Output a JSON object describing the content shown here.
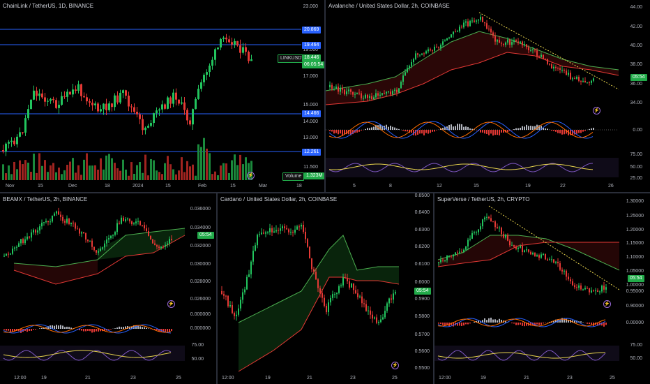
{
  "panes": {
    "link": {
      "title": "ChainLink / TetherUS, 1D, BINANCE",
      "y_labels": [
        "23.000",
        "19.000",
        "17.000",
        "15.000",
        "14.000",
        "13.000",
        "11.500"
      ],
      "levels": [
        "20.869",
        "19.464",
        "14.466",
        "12.261"
      ],
      "symbol_tag": "LINKUSDT",
      "price": "18.446",
      "countdown": "06:05:54",
      "volume_label": "Volume",
      "volume_value": "1.323M",
      "x_labels": [
        "Nov",
        "15",
        "Dec",
        "18",
        "2024",
        "15",
        "Feb",
        "15",
        "Mar",
        "18"
      ]
    },
    "avax": {
      "title": "Avalanche / United States Dollar, 2h, COINBASE",
      "y_labels": [
        "44.00",
        "42.00",
        "40.00",
        "38.00",
        "36.00",
        "34.00"
      ],
      "price_tag": "05:54",
      "macd_label": "0.00",
      "rsi_labels": [
        "75.00",
        "50.00",
        "25.00"
      ],
      "x_labels": [
        "5",
        "8",
        "12",
        "15",
        "19",
        "22",
        "26"
      ]
    },
    "beamx": {
      "title": "BEAMX / TetherUS, 2h, BINANCE",
      "y_labels": [
        "0.036000",
        "0.034000",
        "0.032000",
        "0.030000",
        "0.028000",
        "0.026000"
      ],
      "price_tag": "05:54",
      "macd_labels": [
        "0.000000",
        "0.000000"
      ],
      "rsi_labels": [
        "75.00",
        "50.00"
      ],
      "x_labels": [
        "12:00",
        "19",
        "21",
        "23",
        "25"
      ]
    },
    "ada": {
      "title": "Cardano / United States Dollar, 2h, COINBASE",
      "y_labels": [
        "0.6500",
        "0.6400",
        "0.6300",
        "0.6200",
        "0.6100",
        "0.6000",
        "0.5900",
        "0.5800",
        "0.5700",
        "0.5600",
        "0.5500"
      ],
      "price_tag": "05:54",
      "x_labels": [
        "12:00",
        "19",
        "21",
        "23",
        "25"
      ]
    },
    "sxp": {
      "title": "SuperVerse / TetherUS, 2h, CRYPTO",
      "y_labels": [
        "1.30000",
        "1.25000",
        "1.20000",
        "1.15000",
        "1.10000",
        "1.05000",
        "1.00000",
        "0.95000",
        "0.90000"
      ],
      "price_tag": "05:54",
      "macd_label": "0.00000",
      "rsi_labels": [
        "75.00",
        "50.00"
      ],
      "x_labels": [
        "12:00",
        "19",
        "21",
        "23",
        "25"
      ]
    }
  },
  "colors": {
    "up": "#26a69a",
    "bull": "#22c55e",
    "bear": "#e53935",
    "level": "#2962ff"
  }
}
